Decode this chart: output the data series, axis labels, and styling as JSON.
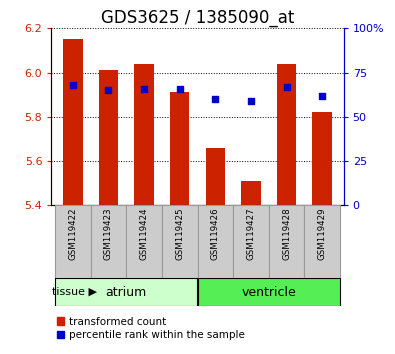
{
  "title": "GDS3625 / 1385090_at",
  "samples": [
    "GSM119422",
    "GSM119423",
    "GSM119424",
    "GSM119425",
    "GSM119426",
    "GSM119427",
    "GSM119428",
    "GSM119429"
  ],
  "red_values": [
    6.15,
    6.01,
    6.04,
    5.91,
    5.66,
    5.51,
    6.04,
    5.82
  ],
  "blue_values": [
    68,
    65,
    66,
    66,
    60,
    59,
    67,
    62
  ],
  "bar_bottom": 5.4,
  "ylim_left": [
    5.4,
    6.2
  ],
  "ylim_right": [
    0,
    100
  ],
  "yticks_left": [
    5.4,
    5.6,
    5.8,
    6.0,
    6.2
  ],
  "yticks_right": [
    0,
    25,
    50,
    75,
    100
  ],
  "atrium_samples": [
    0,
    1,
    2,
    3
  ],
  "ventricle_samples": [
    4,
    5,
    6,
    7
  ],
  "bar_color": "#cc2200",
  "dot_color": "#0000cc",
  "atrium_color": "#ccffcc",
  "ventricle_color": "#55ee55",
  "label_bg_color": "#cccccc",
  "bg_color": "#ffffff",
  "legend_red": "transformed count",
  "legend_blue": "percentile rank within the sample",
  "tissue_label": "tissue",
  "atrium_label": "atrium",
  "ventricle_label": "ventricle",
  "bar_width": 0.55,
  "title_fontsize": 12,
  "tick_fontsize": 8,
  "label_fontsize": 8
}
